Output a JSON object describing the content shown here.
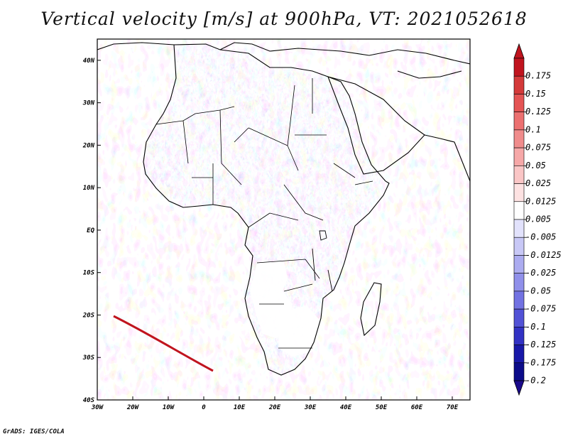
{
  "title": "Vertical velocity [m/s] at 900hPa, VT: 2021052618",
  "footer": "GrADS: IGES/COLA",
  "map": {
    "lon_range": [
      -30,
      75
    ],
    "lat_range": [
      -40,
      45
    ],
    "lon_labels": [
      "30W",
      "20W",
      "10W",
      "0",
      "10E",
      "20E",
      "30E",
      "40E",
      "50E",
      "60E",
      "70E"
    ],
    "lat_labels": [
      "40N",
      "30N",
      "20N",
      "10N",
      "EQ",
      "10S",
      "20S",
      "30S",
      "40S"
    ]
  },
  "colorbar": {
    "levels": [
      "0.175",
      "0.15",
      "0.125",
      "0.1",
      "0.075",
      "0.05",
      "0.025",
      "0.0125",
      "0.005",
      "-0.005",
      "-0.0125",
      "-0.025",
      "-0.05",
      "-0.075",
      "-0.1",
      "-0.125",
      "-0.175",
      "-0.2"
    ],
    "colors": [
      "#c0141e",
      "#d43a3a",
      "#e45454",
      "#ec7070",
      "#f08c8c",
      "#f6a8a8",
      "#fac6c6",
      "#fde2e2",
      "#ffffff",
      "#e2e2fc",
      "#c8c8f6",
      "#acacf0",
      "#9090ea",
      "#7272e2",
      "#5252d6",
      "#3232c4",
      "#1818a8",
      "#0c0c8a"
    ]
  }
}
